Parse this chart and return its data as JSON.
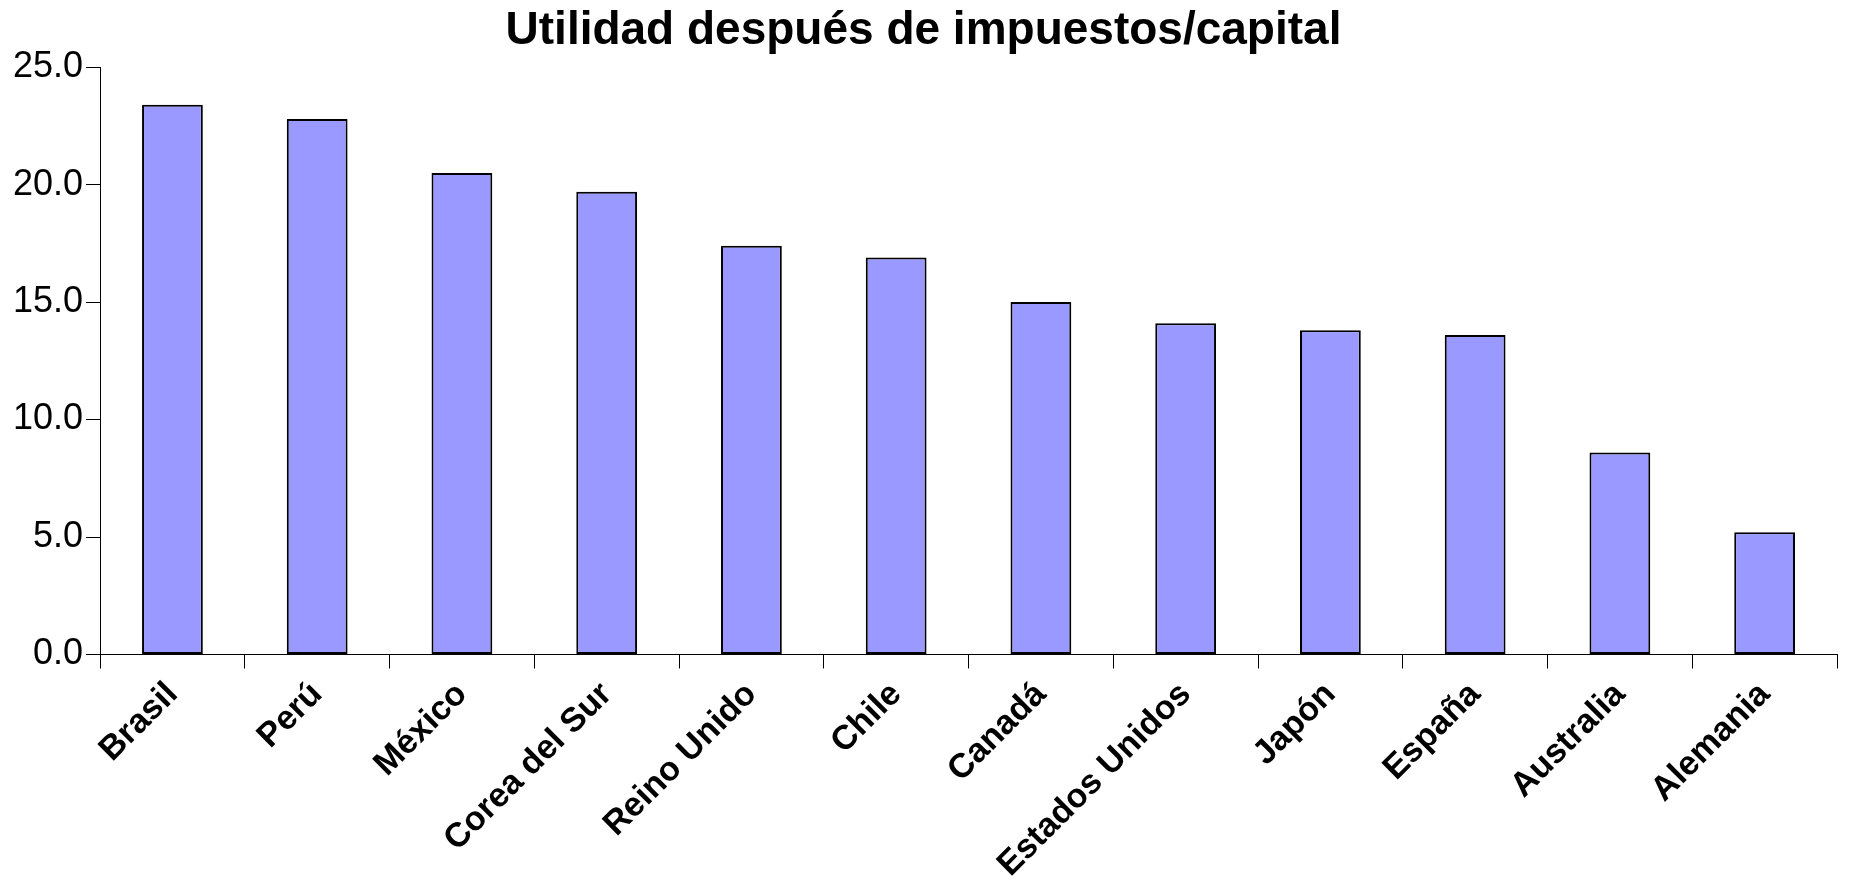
{
  "chart_data": {
    "type": "bar",
    "title": "Utilidad después de impuestos/capital",
    "categories": [
      "Brasil",
      "Perú",
      "México",
      "Corea del Sur",
      "Reino Unido",
      "Chile",
      "Canadá",
      "Estados Unidos",
      "Japón",
      "España",
      "Australia",
      "Alemania"
    ],
    "values": [
      23.4,
      22.8,
      20.5,
      19.7,
      17.4,
      16.9,
      15.0,
      14.1,
      13.8,
      13.6,
      8.6,
      5.2
    ],
    "color": "#9999ff",
    "ylim": [
      0,
      25
    ],
    "yticks": [
      {
        "value": 0,
        "label": "0.0"
      },
      {
        "value": 5,
        "label": "5.0"
      },
      {
        "value": 10,
        "label": "10.0"
      },
      {
        "value": 15,
        "label": "15.0"
      },
      {
        "value": 20,
        "label": "20.0"
      },
      {
        "value": 25,
        "label": "25.0"
      }
    ],
    "grid": false,
    "legend": false
  }
}
